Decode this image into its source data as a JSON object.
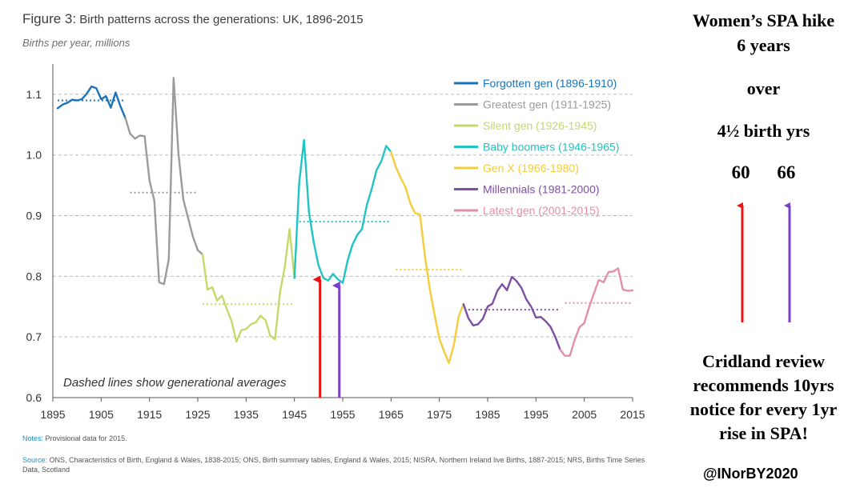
{
  "chart_data": {
    "type": "line",
    "figure_label": "Figure 3:",
    "title": "Birth patterns across the generations: UK, 1896-2015",
    "ylabel": "Births per year, millions",
    "xlabel": "",
    "xlim": [
      1895,
      2015
    ],
    "ylim": [
      0.6,
      1.15
    ],
    "xticks": [
      1895,
      1905,
      1915,
      1925,
      1935,
      1945,
      1955,
      1965,
      1975,
      1985,
      1995,
      2005,
      2015
    ],
    "yticks": [
      0.6,
      0.7,
      0.8,
      0.9,
      1.0,
      1.1
    ],
    "ytick_labels": [
      "0.6",
      "0.7",
      "0.8",
      "0.9",
      "1.0",
      "1.1"
    ],
    "grid": "horizontal dashed",
    "annotation": "Dashed lines show generational averages",
    "series": [
      {
        "name": "Forgotten gen (1896-1910)",
        "color": "#1a73b8",
        "x": [
          1896,
          1897,
          1898,
          1899,
          1900,
          1901,
          1902,
          1903,
          1904,
          1905,
          1906,
          1907,
          1908,
          1909,
          1910
        ],
        "values": [
          1.077,
          1.083,
          1.086,
          1.091,
          1.09,
          1.092,
          1.101,
          1.113,
          1.11,
          1.092,
          1.097,
          1.078,
          1.103,
          1.08,
          1.061
        ],
        "average": 1.09,
        "avg_range": [
          1896,
          1910
        ]
      },
      {
        "name": "Greatest gen (1911-1925)",
        "color": "#9b9b9b",
        "x": [
          1910,
          1911,
          1912,
          1913,
          1914,
          1915,
          1916,
          1917,
          1918,
          1919,
          1920,
          1921,
          1922,
          1923,
          1924,
          1925,
          1926
        ],
        "values": [
          1.061,
          1.035,
          1.027,
          1.032,
          1.031,
          0.958,
          0.925,
          0.79,
          0.787,
          0.828,
          1.127,
          1.002,
          0.927,
          0.896,
          0.865,
          0.843,
          0.836
        ],
        "average": 0.938,
        "avg_range": [
          1911,
          1925
        ]
      },
      {
        "name": "Silent gen (1926-1945)",
        "color": "#c6d86a",
        "x": [
          1926,
          1927,
          1928,
          1929,
          1930,
          1931,
          1932,
          1933,
          1934,
          1935,
          1936,
          1937,
          1938,
          1939,
          1940,
          1941,
          1942,
          1943,
          1944,
          1945
        ],
        "values": [
          0.836,
          0.778,
          0.782,
          0.76,
          0.768,
          0.746,
          0.726,
          0.692,
          0.711,
          0.713,
          0.721,
          0.724,
          0.735,
          0.728,
          0.702,
          0.696,
          0.773,
          0.815,
          0.878,
          0.797
        ],
        "average": 0.754,
        "avg_range": [
          1926,
          1945
        ]
      },
      {
        "name": "Baby boomers (1946-1965)",
        "color": "#20c4c2",
        "x": [
          1945,
          1946,
          1947,
          1948,
          1949,
          1950,
          1951,
          1952,
          1953,
          1954,
          1955,
          1956,
          1957,
          1958,
          1959,
          1960,
          1961,
          1962,
          1963,
          1964,
          1965
        ],
        "values": [
          0.797,
          0.955,
          1.025,
          0.906,
          0.856,
          0.818,
          0.797,
          0.793,
          0.804,
          0.795,
          0.789,
          0.825,
          0.852,
          0.868,
          0.878,
          0.918,
          0.944,
          0.975,
          0.99,
          1.015,
          1.005
        ],
        "average": 0.89,
        "avg_range": [
          1946,
          1965
        ]
      },
      {
        "name": "Gen X (1966-1980)",
        "color": "#f5cd3a",
        "x": [
          1965,
          1966,
          1967,
          1968,
          1969,
          1970,
          1971,
          1972,
          1973,
          1974,
          1975,
          1976,
          1977,
          1978,
          1979,
          1980
        ],
        "values": [
          1.005,
          0.98,
          0.962,
          0.947,
          0.92,
          0.904,
          0.902,
          0.834,
          0.78,
          0.737,
          0.697,
          0.676,
          0.657,
          0.687,
          0.734,
          0.754
        ],
        "average": 0.811,
        "avg_range": [
          1966,
          1980
        ]
      },
      {
        "name": "Millennials (1981-2000)",
        "color": "#7e4ea3",
        "x": [
          1980,
          1981,
          1982,
          1983,
          1984,
          1985,
          1986,
          1987,
          1988,
          1989,
          1990,
          1991,
          1992,
          1993,
          1994,
          1995,
          1996,
          1997,
          1998,
          1999,
          2000
        ],
        "values": [
          0.754,
          0.731,
          0.719,
          0.721,
          0.73,
          0.75,
          0.755,
          0.776,
          0.787,
          0.777,
          0.799,
          0.792,
          0.781,
          0.762,
          0.75,
          0.732,
          0.733,
          0.726,
          0.717,
          0.7,
          0.679
        ],
        "average": 0.745,
        "avg_range": [
          1981,
          2000
        ]
      },
      {
        "name": "Latest gen (2001-2015)",
        "color": "#e291a5",
        "x": [
          2000,
          2001,
          2002,
          2003,
          2004,
          2005,
          2006,
          2007,
          2008,
          2009,
          2010,
          2011,
          2012,
          2013,
          2014,
          2015
        ],
        "values": [
          0.679,
          0.669,
          0.669,
          0.695,
          0.716,
          0.723,
          0.749,
          0.772,
          0.794,
          0.79,
          0.807,
          0.808,
          0.813,
          0.778,
          0.776,
          0.777
        ],
        "average": 0.756,
        "avg_range": [
          2001,
          2015
        ]
      }
    ],
    "arrows": [
      {
        "x": 1950.3,
        "from": 0.6,
        "to": 0.8,
        "color": "#ee1111"
      },
      {
        "x": 1954.3,
        "from": 0.6,
        "to": 0.79,
        "color": "#7a3fc8"
      }
    ],
    "notes_label": "Notes:",
    "notes_text": "Provisional data for 2015.",
    "source_label": "Source:",
    "source_text": "ONS, Characteristics of Birth, England & Wales, 1838-2015; ONS, Birth summary tables, England & Wales, 2015; NISRA, Northern Ireland live Births, 1887-2015; NRS, Births Time Series Data, Scotland"
  },
  "side_panel": {
    "title_line1": "Women’s SPA hike",
    "title_line2": "6 years",
    "over": "over",
    "birth_years": "4½ birth yrs",
    "age_from": "60",
    "age_to": "66",
    "arrow_red": "#ee1111",
    "arrow_purple": "#7a3fc8",
    "cridland_line1": "Cridland review",
    "cridland_line2": "recommends 10yrs",
    "cridland_line3": "notice for every 1yr",
    "cridland_line4": "rise in SPA!",
    "handle": "@INorBY2020"
  }
}
